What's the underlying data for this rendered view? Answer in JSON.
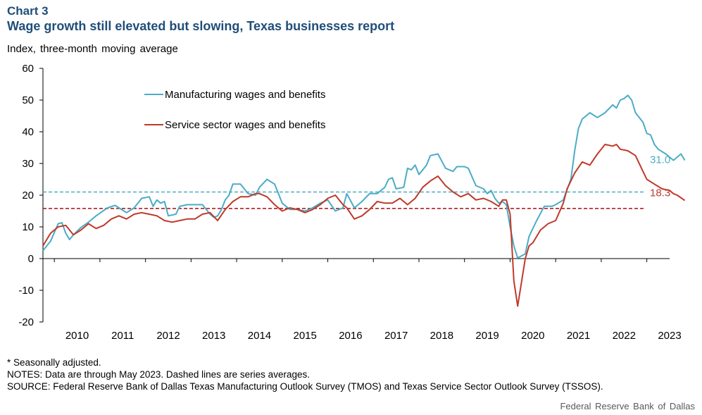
{
  "header": {
    "chart_label": "Chart 3",
    "title": "Wage growth still elevated but slowing, Texas businesses report",
    "subtitle": "Index, three-month moving average"
  },
  "footer": {
    "note_1": "* Seasonally adjusted.",
    "note_2": "NOTES: Data are through May 2023. Dashed lines are series averages.",
    "note_3": "SOURCE: Federal Reserve Bank of Dallas Texas Manufacturing Outlook Survey (TMOS) and Texas Service Sector Outlook Survey (TSSOS).",
    "credit": "Federal Reserve Bank of Dallas"
  },
  "colors": {
    "manufacturing": "#4bacc6",
    "service": "#c0392b",
    "manufacturing_average": "#4bacc6",
    "service_average": "#a50f15",
    "axis": "#000000"
  },
  "chart_data": {
    "type": "line",
    "ylim": [
      -20,
      60
    ],
    "yticks": [
      -20,
      -10,
      0,
      10,
      20,
      30,
      40,
      50,
      60
    ],
    "xlim": [
      "2009-10",
      "2023-07"
    ],
    "xticks": [
      "2010",
      "2011",
      "2012",
      "2013",
      "2014",
      "2015",
      "2016",
      "2017",
      "2018",
      "2019",
      "2020",
      "2021",
      "2022",
      "2023"
    ],
    "grid": false,
    "legend_position": "top-left",
    "series": [
      {
        "name": "Manufacturing wages and benefits",
        "key": "manufacturing",
        "last_label": "31.0",
        "average": 21,
        "points": [
          [
            "2009-10",
            2.5
          ],
          [
            "2009-12",
            5.5
          ],
          [
            "2010-02",
            11
          ],
          [
            "2010-03",
            11.3
          ],
          [
            "2010-04",
            8
          ],
          [
            "2010-05",
            6
          ],
          [
            "2010-06",
            7.5
          ],
          [
            "2010-08",
            9.8
          ],
          [
            "2010-10",
            11.5
          ],
          [
            "2010-12",
            13.5
          ],
          [
            "2011-03",
            16
          ],
          [
            "2011-05",
            16.8
          ],
          [
            "2011-06",
            16
          ],
          [
            "2011-08",
            14.5
          ],
          [
            "2011-10",
            16
          ],
          [
            "2011-12",
            19
          ],
          [
            "2012-02",
            19.5
          ],
          [
            "2012-03",
            16.5
          ],
          [
            "2012-04",
            18.5
          ],
          [
            "2012-05",
            17.5
          ],
          [
            "2012-06",
            18
          ],
          [
            "2012-07",
            13.5
          ],
          [
            "2012-09",
            14
          ],
          [
            "2012-10",
            16.5
          ],
          [
            "2012-12",
            17
          ],
          [
            "2013-02",
            17
          ],
          [
            "2013-04",
            17
          ],
          [
            "2013-06",
            14
          ],
          [
            "2013-07",
            13
          ],
          [
            "2013-08",
            13.5
          ],
          [
            "2013-09",
            15.5
          ],
          [
            "2013-10",
            18.5
          ],
          [
            "2013-11",
            20
          ],
          [
            "2013-12",
            23.5
          ],
          [
            "2014-02",
            23.5
          ],
          [
            "2014-04",
            20.5
          ],
          [
            "2014-06",
            20
          ],
          [
            "2014-07",
            22.5
          ],
          [
            "2014-09",
            25
          ],
          [
            "2014-11",
            23.5
          ],
          [
            "2015-01",
            17.5
          ],
          [
            "2015-03",
            15.5
          ],
          [
            "2015-05",
            15.5
          ],
          [
            "2015-07",
            15
          ],
          [
            "2015-09",
            16
          ],
          [
            "2015-11",
            17.5
          ],
          [
            "2016-01",
            18.5
          ],
          [
            "2016-03",
            15
          ],
          [
            "2016-05",
            16
          ],
          [
            "2016-06",
            20.5
          ],
          [
            "2016-08",
            16
          ],
          [
            "2016-10",
            18
          ],
          [
            "2016-12",
            20.5
          ],
          [
            "2017-02",
            20.5
          ],
          [
            "2017-04",
            22.5
          ],
          [
            "2017-05",
            25
          ],
          [
            "2017-06",
            25.5
          ],
          [
            "2017-07",
            22
          ],
          [
            "2017-09",
            22.5
          ],
          [
            "2017-10",
            28.5
          ],
          [
            "2017-11",
            28
          ],
          [
            "2017-12",
            29.5
          ],
          [
            "2018-01",
            26.5
          ],
          [
            "2018-03",
            29.5
          ],
          [
            "2018-04",
            32.5
          ],
          [
            "2018-06",
            33
          ],
          [
            "2018-08",
            28.5
          ],
          [
            "2018-10",
            27.5
          ],
          [
            "2018-11",
            29
          ],
          [
            "2019-01",
            29
          ],
          [
            "2019-02",
            28.5
          ],
          [
            "2019-04",
            23
          ],
          [
            "2019-06",
            22
          ],
          [
            "2019-07",
            20.5
          ],
          [
            "2019-08",
            21.5
          ],
          [
            "2019-09",
            19
          ],
          [
            "2019-10",
            17.5
          ],
          [
            "2019-11",
            18
          ],
          [
            "2019-12",
            17
          ],
          [
            "2020-01",
            10
          ],
          [
            "2020-02",
            4
          ],
          [
            "2020-03",
            0.2
          ],
          [
            "2020-05",
            1.5
          ],
          [
            "2020-06",
            7
          ],
          [
            "2020-08",
            12
          ],
          [
            "2020-10",
            16.5
          ],
          [
            "2020-12",
            16.5
          ],
          [
            "2021-01",
            17
          ],
          [
            "2021-03",
            18.5
          ],
          [
            "2021-05",
            25
          ],
          [
            "2021-06",
            34
          ],
          [
            "2021-07",
            41
          ],
          [
            "2021-08",
            44
          ],
          [
            "2021-10",
            46
          ],
          [
            "2021-12",
            44.5
          ],
          [
            "2022-02",
            46
          ],
          [
            "2022-04",
            48.5
          ],
          [
            "2022-05",
            47.5
          ],
          [
            "2022-06",
            50
          ],
          [
            "2022-07",
            50.5
          ],
          [
            "2022-08",
            51.5
          ],
          [
            "2022-09",
            50
          ],
          [
            "2022-10",
            46
          ],
          [
            "2022-12",
            43
          ],
          [
            "2023-01",
            39.5
          ],
          [
            "2023-02",
            39
          ],
          [
            "2023-03",
            36
          ],
          [
            "2023-04",
            34.5
          ],
          [
            "2023-06",
            33
          ],
          [
            "2023-07",
            32
          ],
          [
            "2023-08",
            31
          ],
          [
            "2023-10",
            33
          ],
          [
            "2023-11",
            31
          ]
        ]
      },
      {
        "name": "Service sector wages and benefits",
        "key": "service",
        "last_label": "18.3",
        "average": 15.8,
        "points": [
          [
            "2009-10",
            4
          ],
          [
            "2009-12",
            8
          ],
          [
            "2010-02",
            10
          ],
          [
            "2010-04",
            10.5
          ],
          [
            "2010-06",
            7.5
          ],
          [
            "2010-08",
            9
          ],
          [
            "2010-10",
            11
          ],
          [
            "2010-12",
            9.5
          ],
          [
            "2011-02",
            10.5
          ],
          [
            "2011-04",
            12.5
          ],
          [
            "2011-06",
            13.5
          ],
          [
            "2011-08",
            12.5
          ],
          [
            "2011-10",
            14
          ],
          [
            "2011-12",
            14.5
          ],
          [
            "2012-02",
            14
          ],
          [
            "2012-04",
            13.5
          ],
          [
            "2012-06",
            12
          ],
          [
            "2012-08",
            11.5
          ],
          [
            "2012-10",
            12
          ],
          [
            "2012-12",
            12.5
          ],
          [
            "2013-02",
            12.5
          ],
          [
            "2013-04",
            14
          ],
          [
            "2013-06",
            14.5
          ],
          [
            "2013-08",
            12
          ],
          [
            "2013-10",
            15.5
          ],
          [
            "2013-12",
            18
          ],
          [
            "2014-02",
            19.5
          ],
          [
            "2014-04",
            19.5
          ],
          [
            "2014-06",
            20.5
          ],
          [
            "2014-07",
            20.5
          ],
          [
            "2014-09",
            19.5
          ],
          [
            "2014-11",
            17
          ],
          [
            "2015-01",
            15
          ],
          [
            "2015-03",
            16
          ],
          [
            "2015-05",
            15.5
          ],
          [
            "2015-07",
            14.5
          ],
          [
            "2015-09",
            15.5
          ],
          [
            "2015-11",
            17
          ],
          [
            "2016-01",
            19
          ],
          [
            "2016-03",
            20
          ],
          [
            "2016-05",
            17
          ],
          [
            "2016-06",
            16
          ],
          [
            "2016-08",
            12.5
          ],
          [
            "2016-10",
            13.5
          ],
          [
            "2016-12",
            15.5
          ],
          [
            "2017-02",
            18
          ],
          [
            "2017-04",
            17.5
          ],
          [
            "2017-06",
            17.5
          ],
          [
            "2017-08",
            19
          ],
          [
            "2017-10",
            17
          ],
          [
            "2017-12",
            19
          ],
          [
            "2018-02",
            22.5
          ],
          [
            "2018-04",
            24.5
          ],
          [
            "2018-06",
            26
          ],
          [
            "2018-08",
            23
          ],
          [
            "2018-10",
            21
          ],
          [
            "2018-12",
            19.5
          ],
          [
            "2019-02",
            20.5
          ],
          [
            "2019-04",
            18.5
          ],
          [
            "2019-06",
            19
          ],
          [
            "2019-08",
            18
          ],
          [
            "2019-10",
            16.5
          ],
          [
            "2019-11",
            18.5
          ],
          [
            "2019-12",
            18.5
          ],
          [
            "2020-01",
            14
          ],
          [
            "2020-02",
            -7
          ],
          [
            "2020-03",
            -15
          ],
          [
            "2020-05",
            0
          ],
          [
            "2020-06",
            4
          ],
          [
            "2020-07",
            5
          ],
          [
            "2020-09",
            9
          ],
          [
            "2020-11",
            11
          ],
          [
            "2021-01",
            12
          ],
          [
            "2021-03",
            17.5
          ],
          [
            "2021-04",
            22
          ],
          [
            "2021-06",
            27
          ],
          [
            "2021-08",
            30.5
          ],
          [
            "2021-10",
            29.5
          ],
          [
            "2021-12",
            33
          ],
          [
            "2022-02",
            36
          ],
          [
            "2022-04",
            35.5
          ],
          [
            "2022-05",
            36
          ],
          [
            "2022-06",
            34.5
          ],
          [
            "2022-08",
            34
          ],
          [
            "2022-10",
            32.5
          ],
          [
            "2022-12",
            27.5
          ],
          [
            "2023-01",
            25
          ],
          [
            "2023-03",
            23.5
          ],
          [
            "2023-05",
            22
          ],
          [
            "2023-07",
            21.5
          ],
          [
            "2023-08",
            20.5
          ],
          [
            "2023-09",
            20
          ],
          [
            "2023-11",
            18.3
          ]
        ]
      }
    ]
  }
}
